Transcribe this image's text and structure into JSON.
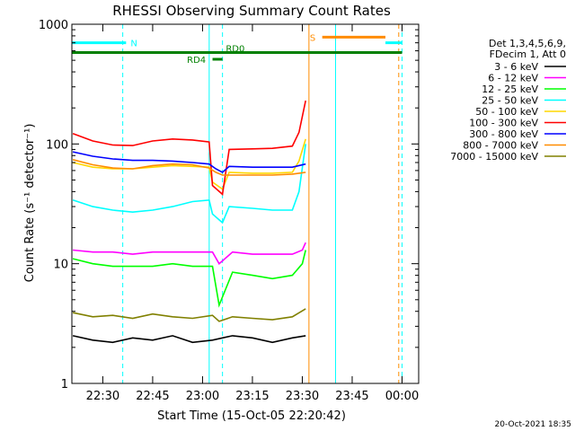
{
  "chart_data": {
    "type": "line",
    "title": "RHESSI Observing Summary Count Rates",
    "xlabel": "Start Time (15-Oct-05 22:20:42)",
    "ylabel": "Count Rate (s⁻¹ detector⁻¹)",
    "y_scale": "log",
    "ylim": [
      1,
      1000
    ],
    "xlim": [
      "22:20:42",
      "00:05:00"
    ],
    "x_ticks": [
      "22:30",
      "22:45",
      "23:00",
      "23:15",
      "23:30",
      "23:45",
      "00:00"
    ],
    "y_ticks": [
      "1",
      "10",
      "100",
      "1000"
    ],
    "grid": false,
    "legend_position": "right",
    "legend_header": [
      "Det 1,3,4,5,6,9,",
      "FDecim 1, Att 0"
    ],
    "x_units": "time",
    "series": [
      {
        "name": "3 - 6 keV",
        "color": "#000000",
        "x": [
          "22:21",
          "22:27",
          "22:33",
          "22:39",
          "22:45",
          "22:51",
          "22:57",
          "23:03",
          "23:09",
          "23:15",
          "23:21",
          "23:27",
          "23:31"
        ],
        "y": [
          2.5,
          2.3,
          2.2,
          2.4,
          2.3,
          2.5,
          2.2,
          2.3,
          2.5,
          2.4,
          2.2,
          2.4,
          2.5
        ]
      },
      {
        "name": "6 - 12 keV",
        "color": "#ff00ff",
        "x": [
          "22:21",
          "22:27",
          "22:33",
          "22:39",
          "22:45",
          "22:51",
          "22:57",
          "23:03",
          "23:05",
          "23:09",
          "23:15",
          "23:21",
          "23:27",
          "23:30",
          "23:31"
        ],
        "y": [
          13,
          12.5,
          12.5,
          12,
          12.5,
          12.5,
          12.5,
          12.5,
          10,
          12.5,
          12,
          12,
          12,
          13,
          15
        ]
      },
      {
        "name": "12 - 25 keV",
        "color": "#00ff00",
        "x": [
          "22:21",
          "22:27",
          "22:33",
          "22:39",
          "22:45",
          "22:51",
          "22:57",
          "23:03",
          "23:05",
          "23:09",
          "23:15",
          "23:21",
          "23:27",
          "23:30",
          "23:31"
        ],
        "y": [
          11,
          10,
          9.5,
          9.5,
          9.5,
          10,
          9.5,
          9.5,
          4.5,
          8.5,
          8,
          7.5,
          8,
          10,
          13
        ]
      },
      {
        "name": "25 - 50 keV",
        "color": "#00ffff",
        "x": [
          "22:21",
          "22:27",
          "22:33",
          "22:39",
          "22:45",
          "22:51",
          "22:57",
          "23:02",
          "23:03",
          "23:06",
          "23:08",
          "23:15",
          "23:21",
          "23:27",
          "23:29",
          "23:31"
        ],
        "y": [
          34,
          30,
          28,
          27,
          28,
          30,
          33,
          34,
          26,
          22,
          30,
          29,
          28,
          28,
          40,
          100
        ]
      },
      {
        "name": "50 - 100 keV",
        "color": "#ffd700",
        "x": [
          "22:21",
          "22:27",
          "22:33",
          "22:39",
          "22:45",
          "22:51",
          "22:57",
          "23:02",
          "23:03",
          "23:06",
          "23:08",
          "23:15",
          "23:21",
          "23:27",
          "23:29",
          "23:31"
        ],
        "y": [
          70,
          64,
          62,
          62,
          64,
          66,
          65,
          64,
          48,
          42,
          58,
          57,
          57,
          58,
          72,
          110
        ]
      },
      {
        "name": "100 - 300 keV",
        "color": "#ff0000",
        "x": [
          "22:21",
          "22:27",
          "22:33",
          "22:39",
          "22:45",
          "22:51",
          "22:57",
          "23:02",
          "23:03",
          "23:06",
          "23:08",
          "23:15",
          "23:21",
          "23:27",
          "23:29",
          "23:31"
        ],
        "y": [
          122,
          106,
          98,
          97,
          106,
          110,
          108,
          104,
          45,
          38,
          90,
          91,
          92,
          96,
          125,
          230
        ]
      },
      {
        "name": "300 - 800 keV",
        "color": "#0000ff",
        "x": [
          "22:21",
          "22:27",
          "22:33",
          "22:39",
          "22:45",
          "22:51",
          "22:57",
          "23:02",
          "23:04",
          "23:06",
          "23:08",
          "23:15",
          "23:21",
          "23:27",
          "23:31"
        ],
        "y": [
          86,
          79,
          75,
          73,
          73,
          72,
          70,
          68,
          62,
          58,
          65,
          64,
          64,
          64,
          68
        ]
      },
      {
        "name": "800 - 7000 keV",
        "color": "#ff8c00",
        "x": [
          "22:21",
          "22:27",
          "22:33",
          "22:39",
          "22:45",
          "22:51",
          "22:57",
          "23:02",
          "23:04",
          "23:06",
          "23:08",
          "23:15",
          "23:21",
          "23:27",
          "23:31"
        ],
        "y": [
          74,
          67,
          63,
          62,
          66,
          68,
          67,
          63,
          58,
          55,
          55,
          55,
          55,
          56,
          58
        ]
      },
      {
        "name": "7000 - 15000 keV",
        "color": "#808000",
        "x": [
          "22:21",
          "22:27",
          "22:33",
          "22:39",
          "22:45",
          "22:51",
          "22:57",
          "23:03",
          "23:05",
          "23:09",
          "23:15",
          "23:21",
          "23:27",
          "23:31"
        ],
        "y": [
          3.9,
          3.6,
          3.7,
          3.5,
          3.8,
          3.6,
          3.5,
          3.7,
          3.3,
          3.6,
          3.5,
          3.4,
          3.6,
          4.2
        ]
      }
    ],
    "flags": [
      {
        "name": "N",
        "color": "#00ffff",
        "level": 700,
        "x_start": "22:20:42",
        "x_end": "22:37",
        "label_at": "22:37"
      },
      {
        "name": "RD0",
        "color": "#008000",
        "level": 580,
        "x_start": "22:20:42",
        "x_end": "00:00",
        "label_at": "23:07"
      },
      {
        "name": "RD4",
        "color": "#008000",
        "level": 510,
        "x_start": "23:03",
        "x_end": "23:06",
        "label_at": "23:01"
      },
      {
        "name": "S",
        "color": "#ff8c00",
        "level": 780,
        "x_start": "23:36",
        "x_end": "23:55",
        "label_at": "23:34"
      },
      {
        "name": "",
        "color": "#00ffff",
        "level": 700,
        "x_start": "23:55",
        "x_end": "00:00",
        "label_at": ""
      }
    ],
    "vlines": [
      {
        "x": "22:20:42",
        "color": "#00ffff",
        "style": "solid"
      },
      {
        "x": "22:36",
        "color": "#00ffff",
        "style": "dashed"
      },
      {
        "x": "23:02",
        "color": "#00ffff",
        "style": "solid"
      },
      {
        "x": "23:06",
        "color": "#00ffff",
        "style": "dashed"
      },
      {
        "x": "23:32",
        "color": "#ff8c00",
        "style": "solid"
      },
      {
        "x": "23:40",
        "color": "#00ffff",
        "style": "solid"
      },
      {
        "x": "23:59",
        "color": "#ff8c00",
        "style": "dashed"
      },
      {
        "x": "00:00",
        "color": "#00ffff",
        "style": "dashed"
      }
    ],
    "footer_timestamp": "20-Oct-2021 18:35"
  }
}
